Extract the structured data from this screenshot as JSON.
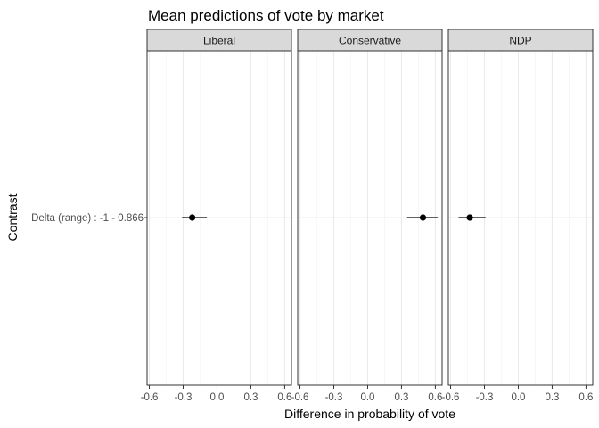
{
  "chart_data": {
    "type": "scatter",
    "title": "Mean predictions of vote by market",
    "xlabel": "Difference in probability of vote",
    "ylabel": "Contrast",
    "categories": [
      "Delta (range) : -1 - 0.866"
    ],
    "xlim": [
      -0.62,
      0.66
    ],
    "x_ticks": [
      "-0.6",
      "-0.3",
      "0.0",
      "0.3",
      "0.6"
    ],
    "x_tick_values": [
      -0.6,
      -0.3,
      0.0,
      0.3,
      0.6
    ],
    "grid": true,
    "facets": [
      {
        "name": "Liberal",
        "estimate": -0.22,
        "ci_low": -0.31,
        "ci_high": -0.09
      },
      {
        "name": "Conservative",
        "estimate": 0.49,
        "ci_low": 0.35,
        "ci_high": 0.62
      },
      {
        "name": "NDP",
        "estimate": -0.43,
        "ci_low": -0.53,
        "ci_high": -0.29
      }
    ]
  }
}
